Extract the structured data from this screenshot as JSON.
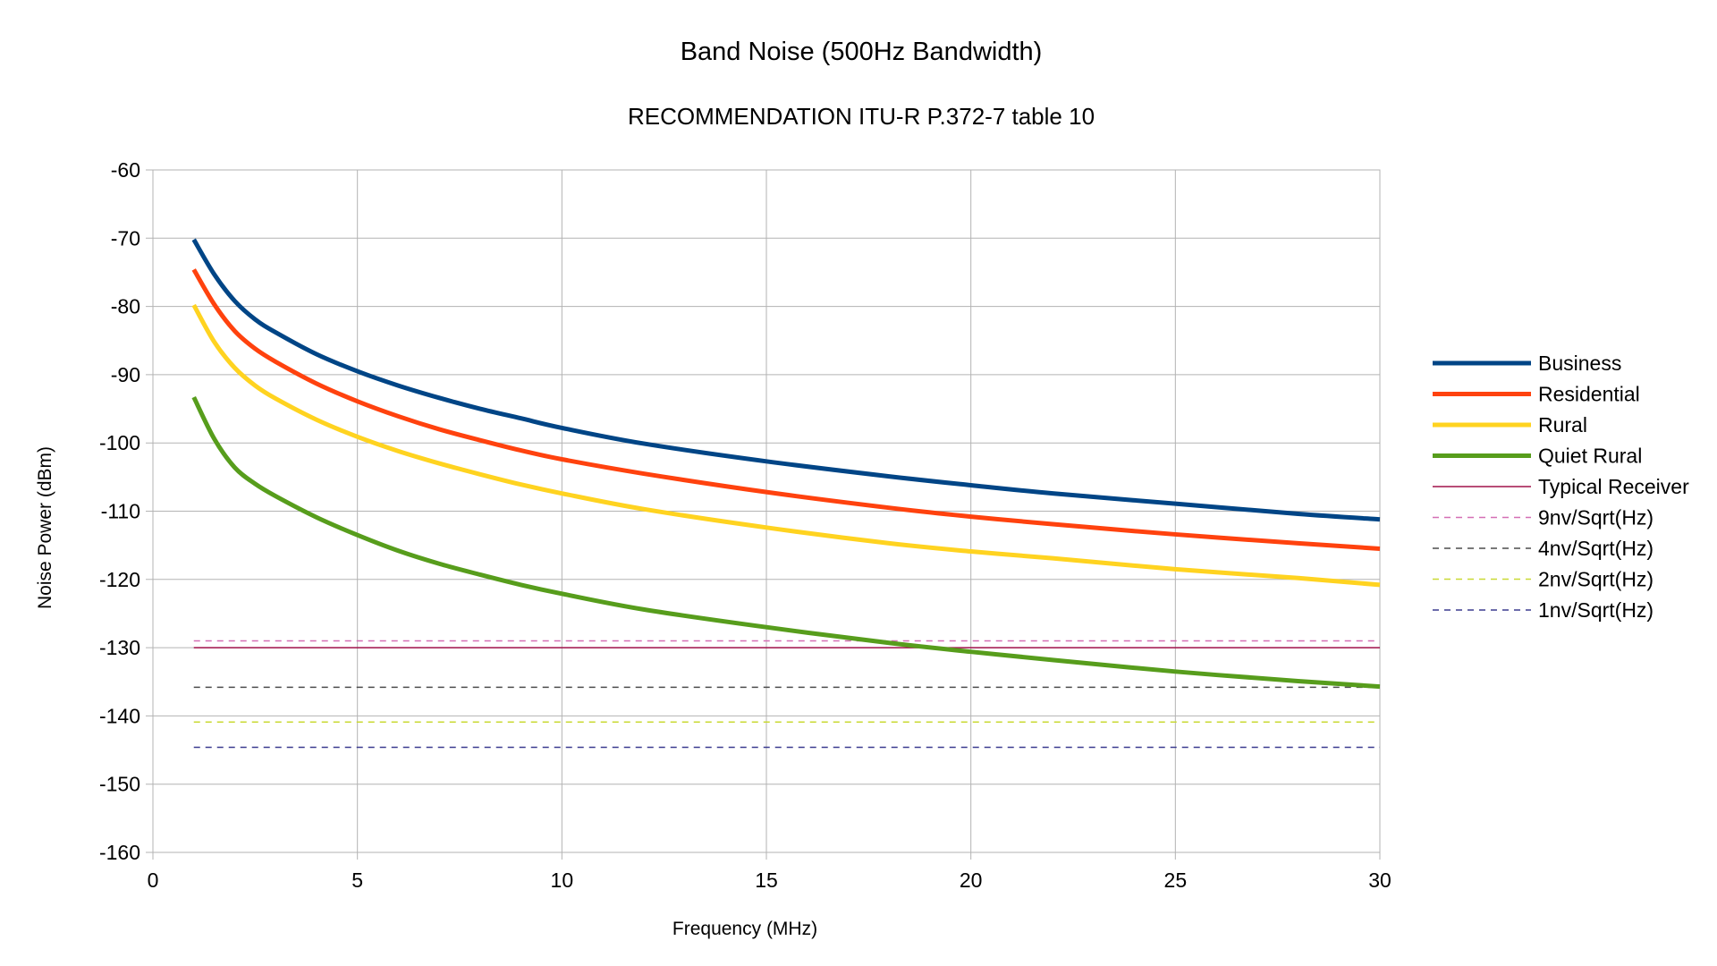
{
  "chart_data": {
    "type": "line",
    "title": "Band Noise (500Hz Bandwidth)",
    "subtitle": "RECOMMENDATION ITU-R P.372-7 table 10",
    "xlabel": "Frequency (MHz)",
    "ylabel": "Noise Power (dBm)",
    "xlim": [
      0,
      30
    ],
    "ylim": [
      -160,
      -60
    ],
    "xticks": [
      "0",
      "5",
      "10",
      "15",
      "20",
      "25",
      "30"
    ],
    "yticks": [
      "-60",
      "-70",
      "-80",
      "-90",
      "-100",
      "-110",
      "-120",
      "-130",
      "-140",
      "-150",
      "-160"
    ],
    "grid": true,
    "legend_position": "right",
    "series": [
      {
        "name": "Business",
        "color": "#004586",
        "style": "solid-thick",
        "x": [
          1,
          1.5,
          2,
          2.5,
          3,
          4,
          5,
          6,
          7,
          8,
          9,
          10,
          12,
          15,
          18,
          20,
          22,
          25,
          28,
          30
        ],
        "y": [
          -70.2,
          -75.3,
          -79.2,
          -81.9,
          -83.8,
          -87.0,
          -89.5,
          -91.6,
          -93.4,
          -95.0,
          -96.4,
          -97.8,
          -100.1,
          -102.7,
          -104.9,
          -106.2,
          -107.4,
          -108.9,
          -110.4,
          -111.2
        ]
      },
      {
        "name": "Residential",
        "color": "#ff420e",
        "style": "solid-thick",
        "x": [
          1,
          1.5,
          2,
          2.5,
          3,
          4,
          5,
          6,
          7,
          8,
          9,
          10,
          12,
          15,
          18,
          20,
          22,
          25,
          28,
          30
        ],
        "y": [
          -74.6,
          -79.7,
          -83.6,
          -86.2,
          -88.1,
          -91.3,
          -93.9,
          -96.1,
          -98.0,
          -99.6,
          -101.1,
          -102.4,
          -104.5,
          -107.2,
          -109.5,
          -110.8,
          -111.9,
          -113.4,
          -114.7,
          -115.5
        ]
      },
      {
        "name": "Rural",
        "color": "#ffd320",
        "style": "solid-thick",
        "x": [
          1,
          1.5,
          2,
          2.5,
          3,
          4,
          5,
          6,
          7,
          8,
          9,
          10,
          12,
          15,
          18,
          20,
          22,
          25,
          28,
          30
        ],
        "y": [
          -79.8,
          -85.2,
          -89.0,
          -91.6,
          -93.5,
          -96.6,
          -99.1,
          -101.2,
          -103.0,
          -104.6,
          -106.1,
          -107.4,
          -109.7,
          -112.4,
          -114.7,
          -115.9,
          -116.9,
          -118.5,
          -119.8,
          -120.8
        ]
      },
      {
        "name": "Quiet Rural",
        "color": "#579d1c",
        "style": "solid-thick",
        "x": [
          1,
          1.5,
          2,
          2.5,
          3,
          4,
          5,
          6,
          7,
          8,
          9,
          10,
          12,
          15,
          18,
          20,
          22,
          25,
          28,
          30
        ],
        "y": [
          -93.3,
          -99.4,
          -103.6,
          -106.0,
          -107.8,
          -110.9,
          -113.5,
          -115.8,
          -117.7,
          -119.3,
          -120.8,
          -122.1,
          -124.4,
          -127.0,
          -129.3,
          -130.6,
          -131.8,
          -133.5,
          -134.9,
          -135.7
        ]
      },
      {
        "name": "Typical Receiver",
        "color": "#a0124a",
        "style": "solid-thin",
        "x": [
          1,
          30
        ],
        "y": [
          -130.0,
          -130.0
        ]
      },
      {
        "name": "9nv/Sqrt(Hz)",
        "color": "#d46fb4",
        "style": "dashed",
        "x": [
          1,
          30
        ],
        "y": [
          -129.0,
          -129.0
        ]
      },
      {
        "name": "4nv/Sqrt(Hz)",
        "color": "#4d4d4d",
        "style": "dashed",
        "x": [
          1,
          30
        ],
        "y": [
          -135.8,
          -135.8
        ]
      },
      {
        "name": "2nv/Sqrt(Hz)",
        "color": "#c9d933",
        "style": "dashed",
        "x": [
          1,
          30
        ],
        "y": [
          -140.9,
          -140.9
        ]
      },
      {
        "name": "1nv/Sqrt(Hz)",
        "color": "#3b3b8f",
        "style": "dashed",
        "x": [
          1,
          30
        ],
        "y": [
          -144.6,
          -144.6
        ]
      }
    ]
  }
}
